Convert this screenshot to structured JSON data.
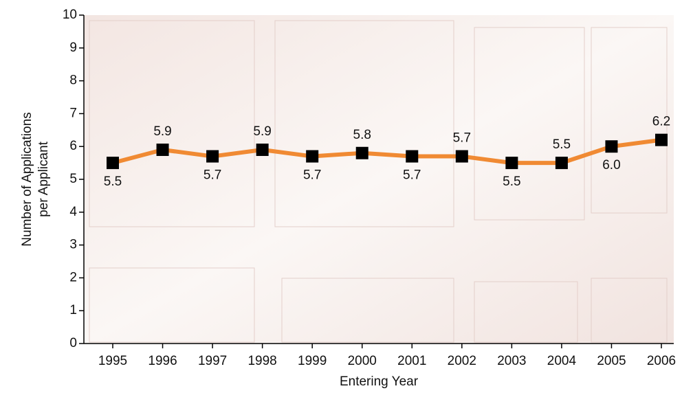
{
  "chart_data": {
    "type": "line",
    "xlabel": "Entering Year",
    "ylabel": [
      "Number of Applications",
      "per Applicant"
    ],
    "categories": [
      "1995",
      "1996",
      "1997",
      "1998",
      "1999",
      "2000",
      "2001",
      "2002",
      "2003",
      "2004",
      "2005",
      "2006"
    ],
    "values": [
      5.5,
      5.9,
      5.7,
      5.9,
      5.7,
      5.8,
      5.7,
      5.7,
      5.5,
      5.5,
      6.0,
      6.2
    ],
    "value_labels": [
      "5.5",
      "5.9",
      "5.7",
      "5.9",
      "5.7",
      "5.8",
      "5.7",
      "5.7",
      "5.5",
      "5.5",
      "6.0",
      "6.2"
    ],
    "color": "#f08a33",
    "marker_color": "#000000",
    "ylim": [
      0,
      10
    ],
    "yticks": [
      0,
      1,
      2,
      3,
      4,
      5,
      6,
      7,
      8,
      9,
      10
    ]
  }
}
